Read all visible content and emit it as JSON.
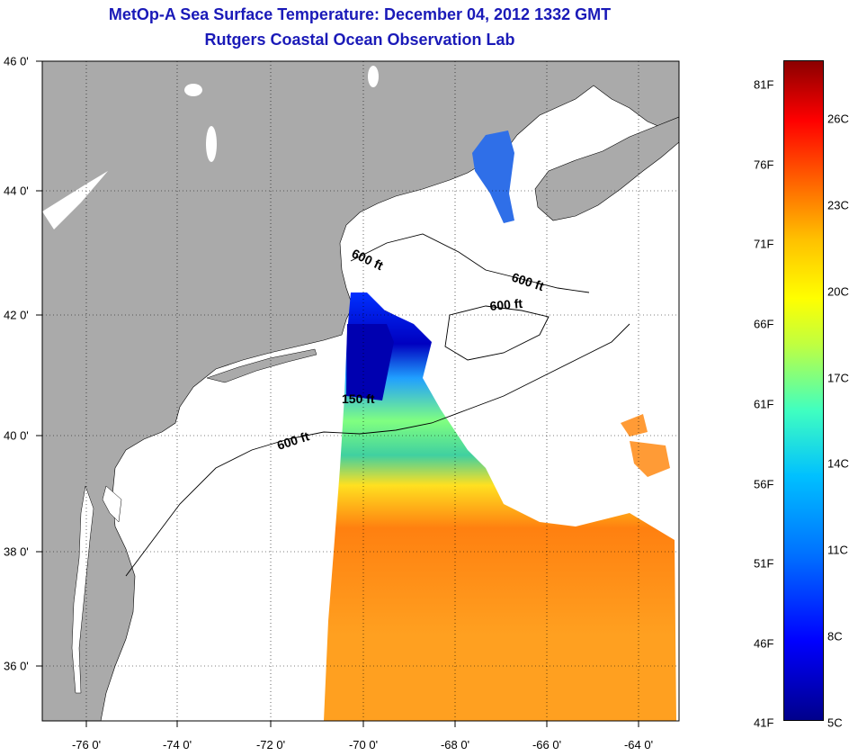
{
  "title": {
    "line1": "MetOp-A Sea Surface Temperature:  December 04, 2012 1332 GMT",
    "line2": "Rutgers Coastal Ocean Observation Lab"
  },
  "x_axis": {
    "ticks": [
      "-76 0'",
      "-74 0'",
      "-72 0'",
      "-70 0'",
      "-68 0'",
      "-66 0'",
      "-64 0'"
    ]
  },
  "y_axis": {
    "ticks": [
      "46 0'",
      "44 0'",
      "42 0'",
      "40 0'",
      "38 0'",
      "36 0'"
    ]
  },
  "contours": {
    "label_600_a": "600 ft",
    "label_600_b": "600 ft",
    "label_600_c": "600 ft",
    "label_600_d": "600 ft",
    "label_150": "150 ft"
  },
  "colorbar": {
    "fahrenheit": [
      "81F",
      "76F",
      "71F",
      "66F",
      "61F",
      "56F",
      "51F",
      "46F",
      "41F"
    ],
    "celsius": [
      "26C",
      "23C",
      "20C",
      "17C",
      "14C",
      "11C",
      "8C",
      "5C"
    ]
  },
  "colors": {
    "land": "#aaaaaa",
    "water": "#ffffff",
    "title": "#1a1ab8"
  }
}
